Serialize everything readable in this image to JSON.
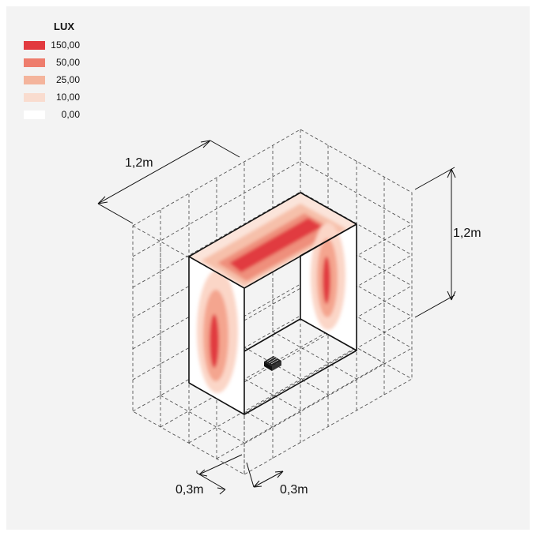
{
  "legend": {
    "title": "LUX",
    "items": [
      {
        "label": "150,00",
        "color": "#e23a3f"
      },
      {
        "label": "50,00",
        "color": "#ee7d6d"
      },
      {
        "label": "25,00",
        "color": "#f4b49c"
      },
      {
        "label": "10,00",
        "color": "#f9dccf"
      },
      {
        "label": "0,00",
        "color": "#ffffff"
      }
    ]
  },
  "dimensions": {
    "width": "1,2m",
    "height": "1,2m",
    "offset_left": "0,3m",
    "offset_right": "0,3m"
  },
  "colors": {
    "background": "#f3f3f3",
    "frame_edge": "#111111",
    "grid_line": "#555555"
  },
  "icons": {
    "fixture": "light-fixture-icon"
  }
}
